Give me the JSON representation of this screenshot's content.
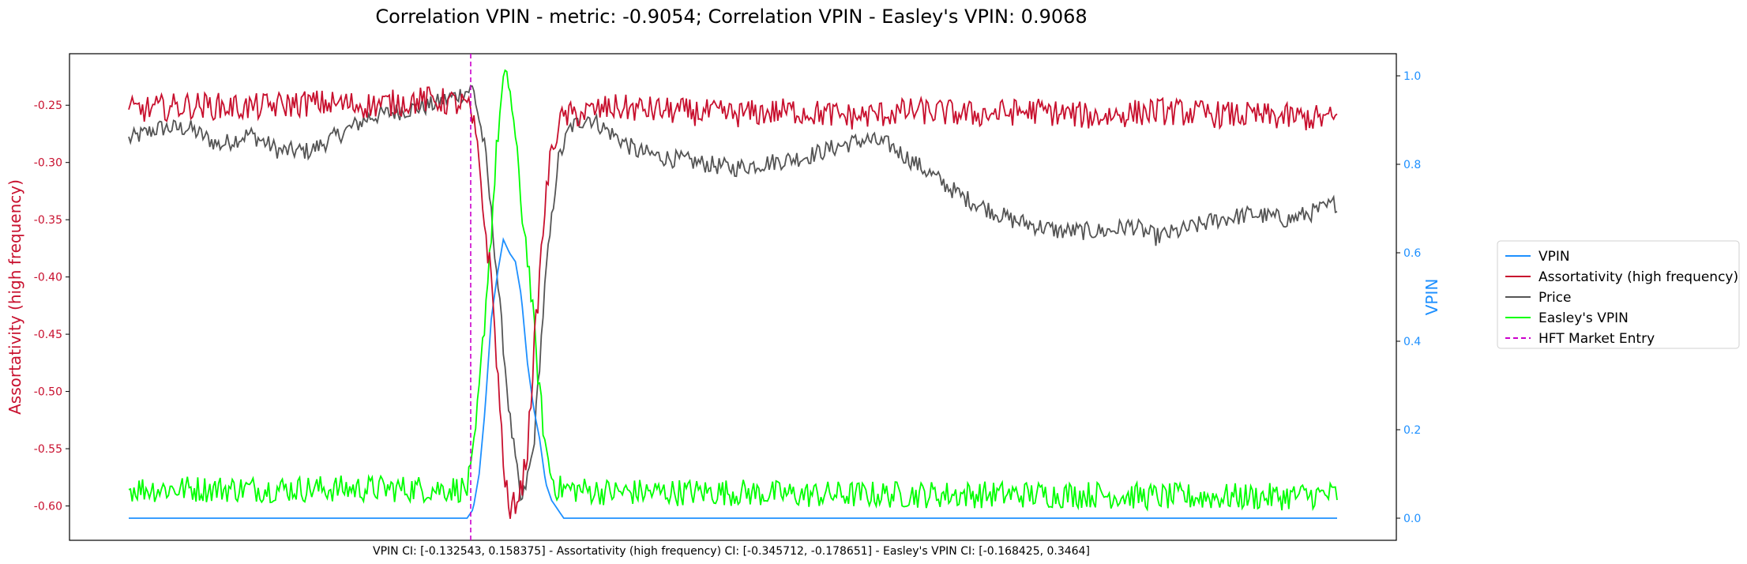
{
  "chart_data": {
    "type": "line",
    "title": "Correlation VPIN - metric: -0.9054; Correlation VPIN - Easley's VPIN: 0.9068",
    "footer": "VPIN CI: [-0.132543, 0.158375] - Assortativity (high frequency) CI: [-0.345712, -0.178651] - Easley's VPIN CI: [-0.168425, 0.3464]",
    "x_range": [
      0,
      1000
    ],
    "left_axis": {
      "label": "Assortativity (high frequency)",
      "color": "#c8102e",
      "range": [
        -0.63,
        -0.205
      ],
      "ticks": [
        "-0.60",
        "-0.55",
        "-0.50",
        "-0.45",
        "-0.40",
        "-0.35",
        "-0.30",
        "-0.25"
      ],
      "tick_values": [
        -0.6,
        -0.55,
        -0.5,
        -0.45,
        -0.4,
        -0.35,
        -0.3,
        -0.25
      ]
    },
    "right_axis": {
      "label": "VPIN",
      "color": "#1e90ff",
      "range": [
        -0.05,
        1.05
      ],
      "ticks": [
        "0.0",
        "0.2",
        "0.4",
        "0.6",
        "0.8",
        "1.0"
      ],
      "tick_values": [
        0.0,
        0.2,
        0.4,
        0.6,
        0.8,
        1.0
      ]
    },
    "grid": false,
    "legend_position": "outside-right",
    "legend": [
      {
        "key": "vpin",
        "label": "VPIN",
        "color": "#1e90ff",
        "dashed": false
      },
      {
        "key": "assortativity",
        "label": "Assortativity (high frequency)",
        "color": "#c8102e",
        "dashed": false
      },
      {
        "key": "price",
        "label": "Price",
        "color": "#555555",
        "dashed": false
      },
      {
        "key": "easley",
        "label": "Easley's VPIN",
        "color": "#00ff00",
        "dashed": false
      },
      {
        "key": "hft",
        "label": "HFT Market Entry",
        "color": "#cc00cc",
        "dashed": true
      }
    ],
    "hft_entry_x": 283,
    "series": [
      {
        "key": "vpin",
        "axis": "right",
        "color": "#1e90ff",
        "x": [
          0,
          280,
          285,
          290,
          295,
          300,
          305,
          310,
          315,
          320,
          325,
          330,
          335,
          340,
          345,
          350,
          355,
          360,
          365,
          1000
        ],
        "y": [
          0.0,
          0.0,
          0.02,
          0.1,
          0.25,
          0.45,
          0.55,
          0.63,
          0.6,
          0.58,
          0.5,
          0.35,
          0.25,
          0.18,
          0.08,
          0.04,
          0.02,
          0.0,
          0.0,
          0.0
        ]
      },
      {
        "key": "assortativity",
        "axis": "left",
        "color": "#c8102e",
        "x": [
          0,
          50,
          100,
          150,
          200,
          250,
          280,
          285,
          290,
          295,
          300,
          305,
          310,
          315,
          320,
          325,
          330,
          335,
          340,
          345,
          350,
          355,
          360,
          400,
          450,
          500,
          550,
          600,
          650,
          700,
          750,
          800,
          850,
          900,
          950,
          1000
        ],
        "y": [
          -0.255,
          -0.25,
          -0.252,
          -0.248,
          -0.25,
          -0.245,
          -0.25,
          -0.265,
          -0.3,
          -0.36,
          -0.4,
          -0.48,
          -0.56,
          -0.61,
          -0.595,
          -0.585,
          -0.55,
          -0.47,
          -0.4,
          -0.33,
          -0.29,
          -0.27,
          -0.26,
          -0.252,
          -0.255,
          -0.258,
          -0.255,
          -0.26,
          -0.255,
          -0.258,
          -0.255,
          -0.26,
          -0.255,
          -0.258,
          -0.26,
          -0.262
        ]
      },
      {
        "key": "price",
        "axis": "left",
        "color": "#555555",
        "x": [
          0,
          25,
          50,
          75,
          100,
          125,
          150,
          175,
          200,
          225,
          250,
          275,
          285,
          295,
          305,
          315,
          325,
          335,
          345,
          355,
          365,
          380,
          400,
          420,
          440,
          470,
          500,
          530,
          560,
          590,
          610,
          630,
          650,
          670,
          690,
          710,
          730,
          750,
          770,
          790,
          810,
          830,
          850,
          870,
          900,
          930,
          960,
          990,
          1000
        ],
        "y": [
          -0.28,
          -0.27,
          -0.27,
          -0.285,
          -0.275,
          -0.29,
          -0.29,
          -0.275,
          -0.26,
          -0.255,
          -0.25,
          -0.24,
          -0.235,
          -0.29,
          -0.4,
          -0.52,
          -0.6,
          -0.55,
          -0.4,
          -0.3,
          -0.27,
          -0.26,
          -0.275,
          -0.29,
          -0.295,
          -0.3,
          -0.305,
          -0.3,
          -0.295,
          -0.285,
          -0.28,
          -0.285,
          -0.3,
          -0.315,
          -0.33,
          -0.34,
          -0.35,
          -0.355,
          -0.36,
          -0.36,
          -0.36,
          -0.355,
          -0.365,
          -0.36,
          -0.35,
          -0.345,
          -0.35,
          -0.34,
          -0.335
        ]
      },
      {
        "key": "easley",
        "axis": "left",
        "color": "#00ff00",
        "x": [
          0,
          50,
          100,
          150,
          200,
          250,
          280,
          285,
          290,
          295,
          300,
          305,
          310,
          315,
          320,
          325,
          330,
          335,
          340,
          345,
          350,
          355,
          360,
          400,
          450,
          500,
          550,
          600,
          650,
          700,
          750,
          800,
          850,
          900,
          950,
          1000
        ],
        "y": [
          -0.585,
          -0.585,
          -0.585,
          -0.585,
          -0.585,
          -0.585,
          -0.585,
          -0.56,
          -0.5,
          -0.43,
          -0.36,
          -0.28,
          -0.23,
          -0.23,
          -0.28,
          -0.34,
          -0.38,
          -0.44,
          -0.5,
          -0.55,
          -0.575,
          -0.585,
          -0.585,
          -0.588,
          -0.588,
          -0.588,
          -0.59,
          -0.59,
          -0.59,
          -0.59,
          -0.59,
          -0.59,
          -0.592,
          -0.592,
          -0.592,
          -0.59
        ]
      }
    ]
  }
}
